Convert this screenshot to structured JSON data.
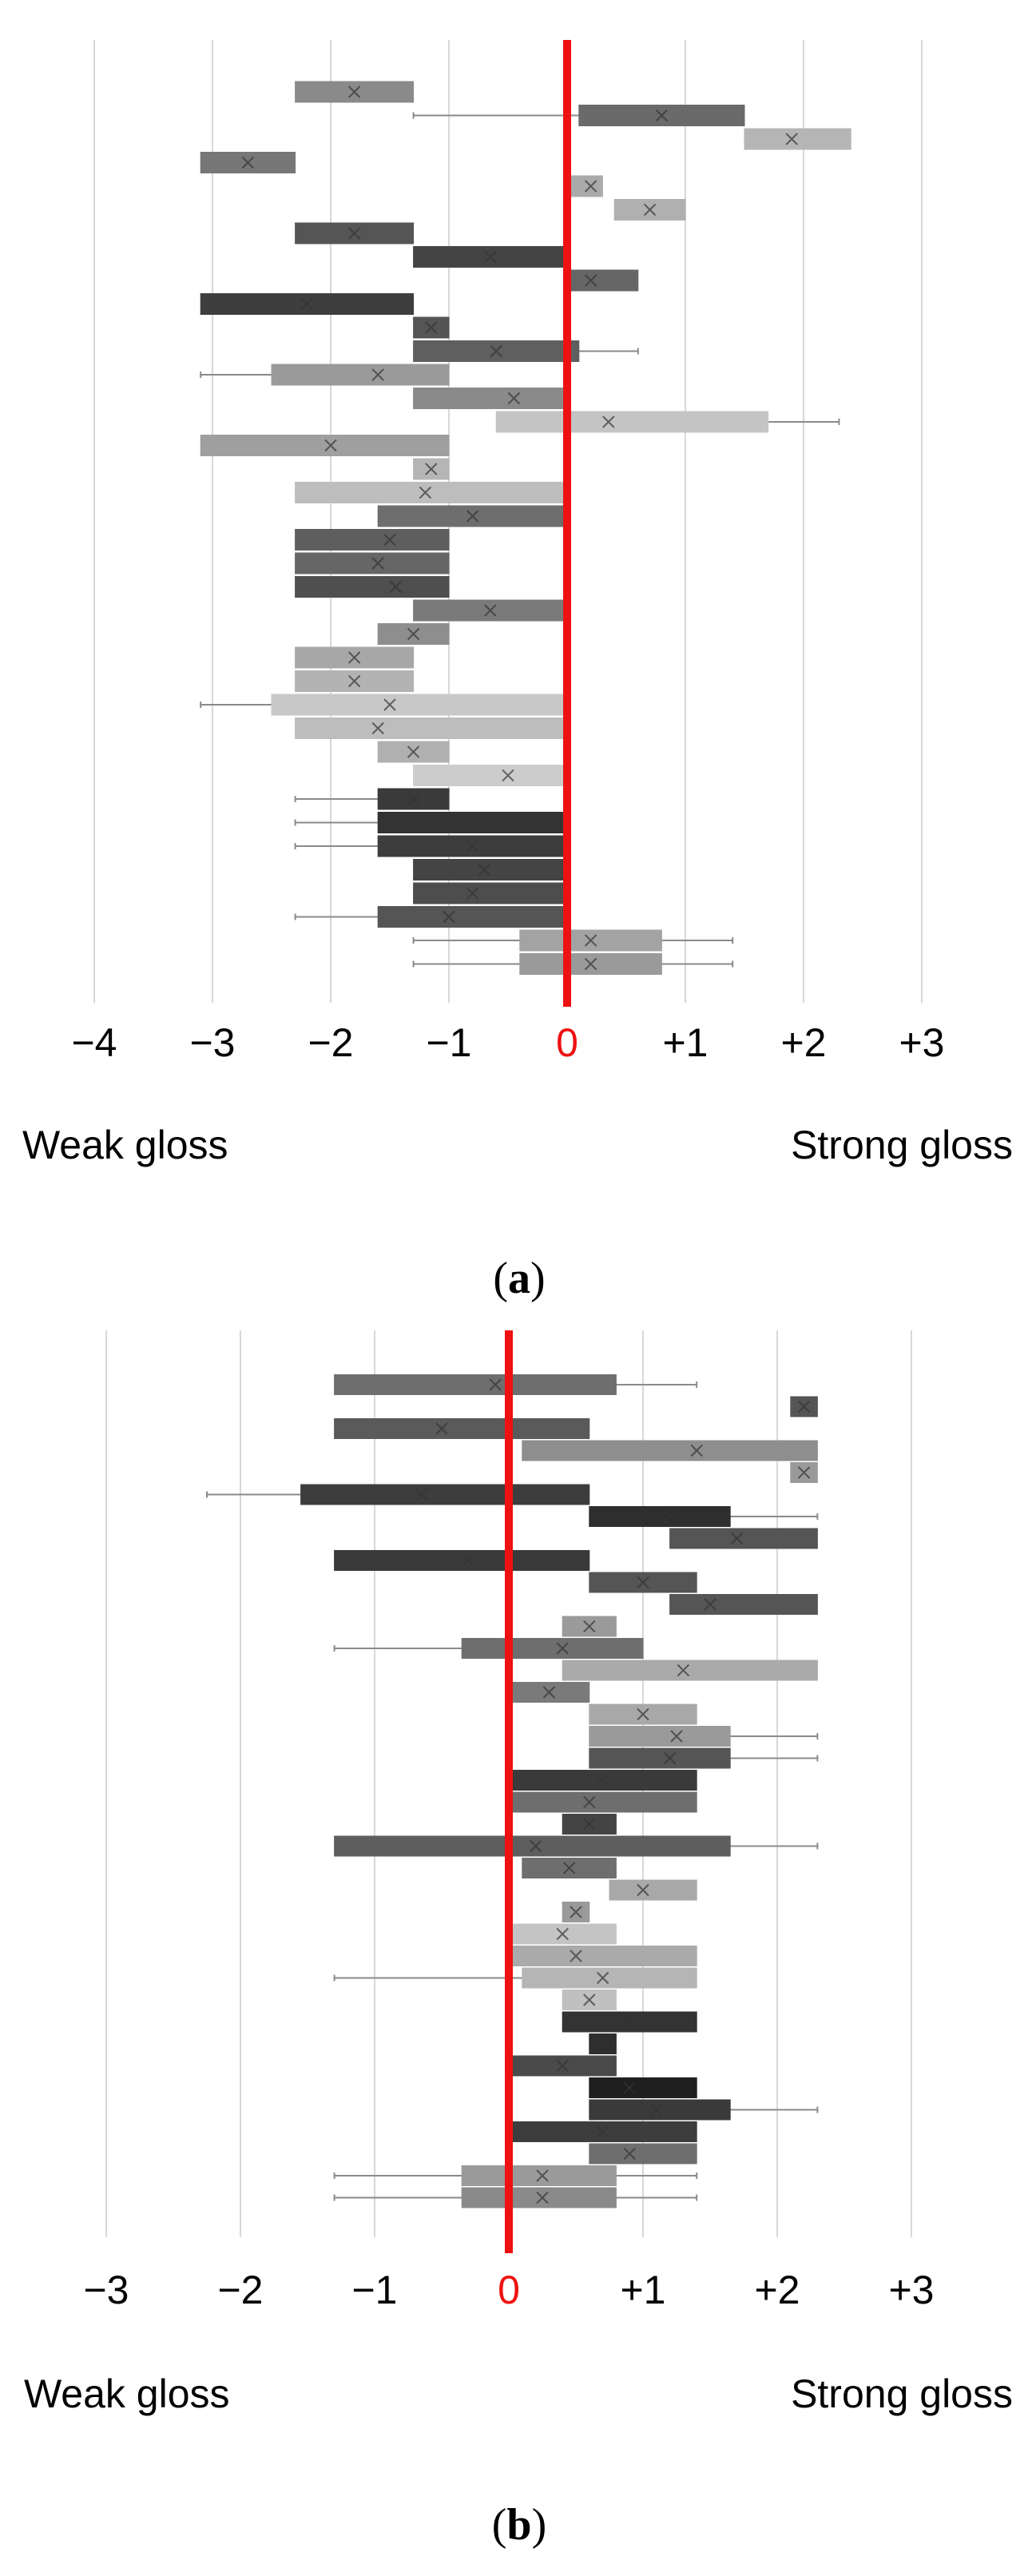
{
  "chart_data": [
    {
      "panel": "a",
      "type": "boxplot",
      "orientation": "horizontal",
      "xlim": [
        -4,
        3
      ],
      "ticks": [
        -4,
        -3,
        -2,
        -1,
        0,
        1,
        2,
        3
      ],
      "tick_labels": [
        "−4",
        "−3",
        "−2",
        "−1",
        "0",
        "+1",
        "+2",
        "+3"
      ],
      "left_label": "Weak gloss",
      "right_label": "Strong gloss",
      "caption_open": "(",
      "caption_letter": "a",
      "caption_close": ")",
      "reference_line": 0,
      "boxes": [
        {
          "q1": -2.3,
          "q3": -1.3,
          "mean": -1.8,
          "shade": "#8a8a8a"
        },
        {
          "q1": 0.1,
          "q3": 1.5,
          "mean": 0.8,
          "wmin": -1.3,
          "shade": "#6a6a6a"
        },
        {
          "q1": 1.5,
          "q3": 2.4,
          "mean": 1.9,
          "shade": "#b5b5b5"
        },
        {
          "q1": -3.1,
          "q3": -2.3,
          "mean": -2.7,
          "shade": "#777777"
        },
        {
          "q1": 0.0,
          "q3": 0.3,
          "mean": 0.2,
          "shade": "#aaaaaa"
        },
        {
          "q1": 0.4,
          "q3": 1.0,
          "mean": 0.7,
          "shade": "#b0b0b0"
        },
        {
          "q1": -2.3,
          "q3": -1.3,
          "mean": -1.8,
          "shade": "#555555"
        },
        {
          "q1": -1.3,
          "q3": 0.0,
          "mean": -0.65,
          "shade": "#444444"
        },
        {
          "q1": 0.0,
          "q3": 0.6,
          "mean": 0.2,
          "shade": "#666666"
        },
        {
          "q1": -3.1,
          "q3": -1.3,
          "mean": -2.2,
          "shade": "#3e3e3e"
        },
        {
          "q1": -1.3,
          "q3": -1.0,
          "mean": -1.15,
          "shade": "#555555"
        },
        {
          "q1": -1.3,
          "q3": 0.1,
          "mean": -0.6,
          "wmax": 0.6,
          "shade": "#5f5f5f"
        },
        {
          "q1": -2.5,
          "q3": -1.0,
          "mean": -1.6,
          "wmin": -3.1,
          "shade": "#9a9a9a"
        },
        {
          "q1": -1.3,
          "q3": 0.0,
          "mean": -0.45,
          "shade": "#8a8a8a"
        },
        {
          "q1": -0.6,
          "q3": 1.7,
          "mean": 0.35,
          "wmax": 2.3,
          "shade": "#c4c4c4"
        },
        {
          "q1": -3.1,
          "q3": -1.0,
          "mean": -2.0,
          "shade": "#9f9f9f"
        },
        {
          "q1": -1.3,
          "q3": -1.0,
          "mean": -1.15,
          "shade": "#b5b5b5"
        },
        {
          "q1": -2.3,
          "q3": 0.0,
          "mean": -1.2,
          "shade": "#bdbdbd"
        },
        {
          "q1": -1.6,
          "q3": 0.0,
          "mean": -0.8,
          "shade": "#6e6e6e"
        },
        {
          "q1": -2.3,
          "q3": -1.0,
          "mean": -1.5,
          "shade": "#5e5e5e"
        },
        {
          "q1": -2.3,
          "q3": -1.0,
          "mean": -1.6,
          "shade": "#666666"
        },
        {
          "q1": -2.3,
          "q3": -1.0,
          "mean": -1.45,
          "shade": "#4f4f4f"
        },
        {
          "q1": -1.3,
          "q3": 0.0,
          "mean": -0.65,
          "shade": "#7a7a7a"
        },
        {
          "q1": -1.6,
          "q3": -1.0,
          "mean": -1.3,
          "shade": "#8e8e8e"
        },
        {
          "q1": -2.3,
          "q3": -1.3,
          "mean": -1.8,
          "shade": "#a7a7a7"
        },
        {
          "q1": -2.3,
          "q3": -1.3,
          "mean": -1.8,
          "shade": "#b3b3b3"
        },
        {
          "q1": -2.5,
          "q3": 0.0,
          "mean": -1.5,
          "wmin": -3.1,
          "shade": "#c8c8c8"
        },
        {
          "q1": -2.3,
          "q3": 0.0,
          "mean": -1.6,
          "shade": "#bdbdbd"
        },
        {
          "q1": -1.6,
          "q3": -1.0,
          "mean": -1.3,
          "shade": "#b0b0b0"
        },
        {
          "q1": -1.3,
          "q3": 0.0,
          "mean": -0.5,
          "shade": "#cccccc"
        },
        {
          "q1": -1.6,
          "q3": -1.0,
          "mean": -1.3,
          "wmin": -2.3,
          "shade": "#3a3a3a"
        },
        {
          "q1": -1.6,
          "q3": 0.0,
          "mean": -0.8,
          "wmin": -2.3,
          "shade": "#333333"
        },
        {
          "q1": -1.6,
          "q3": 0.0,
          "mean": -0.8,
          "wmin": -2.3,
          "shade": "#3d3d3d"
        },
        {
          "q1": -1.3,
          "q3": 0.0,
          "mean": -0.7,
          "shade": "#444444"
        },
        {
          "q1": -1.3,
          "q3": 0.0,
          "mean": -0.8,
          "shade": "#4d4d4d"
        },
        {
          "q1": -1.6,
          "q3": 0.0,
          "mean": -1.0,
          "wmin": -2.3,
          "shade": "#555555"
        },
        {
          "q1": -0.4,
          "q3": 0.8,
          "mean": 0.2,
          "wmin": -1.3,
          "wmax": 1.4,
          "shade": "#a3a3a3"
        },
        {
          "q1": -0.4,
          "q3": 0.8,
          "mean": 0.2,
          "wmin": -1.3,
          "wmax": 1.4,
          "shade": "#9a9a9a"
        }
      ]
    },
    {
      "panel": "b",
      "type": "boxplot",
      "orientation": "horizontal",
      "xlim": [
        -3,
        3
      ],
      "ticks": [
        -3,
        -2,
        -1,
        0,
        1,
        2,
        3
      ],
      "tick_labels": [
        "−3",
        "−2",
        "−1",
        "0",
        "+1",
        "+2",
        "+3"
      ],
      "left_label": "Weak gloss",
      "right_label": "Strong gloss",
      "caption_open": "(",
      "caption_letter": "b",
      "caption_close": ")",
      "reference_line": 0,
      "boxes": [
        {
          "q1": -1.3,
          "q3": 0.8,
          "mean": -0.1,
          "wmax": 1.4,
          "shade": "#6e6e6e"
        },
        {
          "q1": 2.1,
          "q3": 2.3,
          "mean": 2.2,
          "shade": "#555555"
        },
        {
          "q1": -1.3,
          "q3": 0.6,
          "mean": -0.5,
          "shade": "#5a5a5a"
        },
        {
          "q1": 0.1,
          "q3": 2.3,
          "mean": 1.4,
          "shade": "#8e8e8e"
        },
        {
          "q1": 2.1,
          "q3": 2.3,
          "mean": 2.2,
          "shade": "#9a9a9a"
        },
        {
          "q1": -1.55,
          "q3": 0.6,
          "mean": -0.65,
          "wmin": -2.25,
          "shade": "#3d3d3d"
        },
        {
          "q1": 0.6,
          "q3": 1.65,
          "mean": 1.2,
          "wmax": 2.3,
          "shade": "#2e2e2e"
        },
        {
          "q1": 1.2,
          "q3": 2.3,
          "mean": 1.7,
          "shade": "#555555"
        },
        {
          "q1": -1.3,
          "q3": 0.6,
          "mean": -0.3,
          "shade": "#3a3a3a"
        },
        {
          "q1": 0.6,
          "q3": 1.4,
          "mean": 1.0,
          "shade": "#555555"
        },
        {
          "q1": 1.2,
          "q3": 2.3,
          "mean": 1.5,
          "shade": "#555555"
        },
        {
          "q1": 0.4,
          "q3": 0.8,
          "mean": 0.6,
          "shade": "#9a9a9a"
        },
        {
          "q1": -0.35,
          "q3": 1.0,
          "mean": 0.4,
          "wmin": -1.3,
          "shade": "#6e6e6e"
        },
        {
          "q1": 0.4,
          "q3": 2.3,
          "mean": 1.3,
          "shade": "#aaaaaa"
        },
        {
          "q1": 0.0,
          "q3": 0.6,
          "mean": 0.3,
          "shade": "#7a7a7a"
        },
        {
          "q1": 0.6,
          "q3": 1.4,
          "mean": 1.0,
          "shade": "#a8a8a8"
        },
        {
          "q1": 0.6,
          "q3": 1.65,
          "mean": 1.25,
          "wmax": 2.3,
          "shade": "#9a9a9a"
        },
        {
          "q1": 0.6,
          "q3": 1.65,
          "mean": 1.2,
          "wmax": 2.3,
          "shade": "#555555"
        },
        {
          "q1": 0.0,
          "q3": 1.4,
          "mean": 0.7,
          "shade": "#3a3a3a"
        },
        {
          "q1": 0.0,
          "q3": 1.4,
          "mean": 0.6,
          "shade": "#6e6e6e"
        },
        {
          "q1": 0.4,
          "q3": 0.8,
          "mean": 0.6,
          "shade": "#444444"
        },
        {
          "q1": -1.3,
          "q3": 1.65,
          "mean": 0.2,
          "wmax": 2.3,
          "shade": "#5e5e5e"
        },
        {
          "q1": 0.1,
          "q3": 0.8,
          "mean": 0.45,
          "shade": "#6e6e6e"
        },
        {
          "q1": 0.75,
          "q3": 1.4,
          "mean": 1.0,
          "shade": "#a8a8a8"
        },
        {
          "q1": 0.4,
          "q3": 0.6,
          "mean": 0.5,
          "shade": "#9a9a9a"
        },
        {
          "q1": 0.0,
          "q3": 0.8,
          "mean": 0.4,
          "shade": "#c4c4c4"
        },
        {
          "q1": 0.0,
          "q3": 1.4,
          "mean": 0.5,
          "shade": "#aaaaaa"
        },
        {
          "q1": 0.1,
          "q3": 1.4,
          "mean": 0.7,
          "wmin": -1.3,
          "shade": "#b5b5b5"
        },
        {
          "q1": 0.4,
          "q3": 0.8,
          "mean": 0.6,
          "shade": "#c0c0c0"
        },
        {
          "q1": 0.4,
          "q3": 1.4,
          "mean": 0.9,
          "shade": "#333333"
        },
        {
          "q1": 0.6,
          "q3": 0.8,
          "mean": 0.7,
          "shade": "#2e2e2e"
        },
        {
          "q1": 0.0,
          "q3": 0.8,
          "mean": 0.4,
          "shade": "#4a4a4a"
        },
        {
          "q1": 0.6,
          "q3": 1.4,
          "mean": 0.9,
          "shade": "#1f1f1f"
        },
        {
          "q1": 0.6,
          "q3": 1.65,
          "mean": 1.1,
          "wmax": 2.3,
          "shade": "#3a3a3a"
        },
        {
          "q1": 0.0,
          "q3": 1.4,
          "mean": 0.7,
          "shade": "#3d3d3d"
        },
        {
          "q1": 0.6,
          "q3": 1.4,
          "mean": 0.9,
          "shade": "#6e6e6e"
        },
        {
          "q1": -0.35,
          "q3": 0.8,
          "mean": 0.25,
          "wmin": -1.3,
          "wmax": 1.4,
          "shade": "#9a9a9a"
        },
        {
          "q1": -0.35,
          "q3": 0.8,
          "mean": 0.25,
          "wmin": -1.3,
          "wmax": 1.4,
          "shade": "#8a8a8a"
        }
      ]
    }
  ],
  "colors": {
    "reference_line": "#ee1111",
    "gridline": "#d8d8d8",
    "whisker": "#8a8a8a",
    "mean_marker": "#333333"
  }
}
